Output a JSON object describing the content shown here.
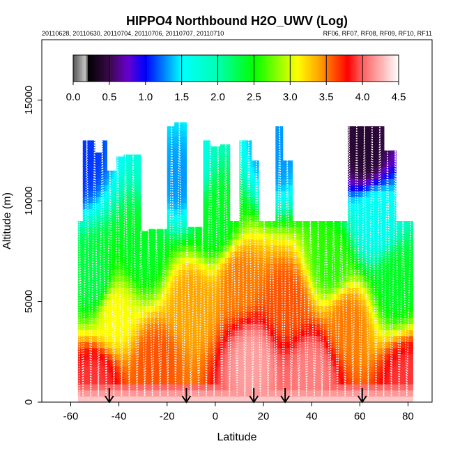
{
  "chart_data": {
    "type": "heatmap",
    "title": "HIPPO4 Northbound H2O_UWV (Log)",
    "subtitle_left": "20110628, 20110630, 20110704, 20110706, 20110707, 20110710",
    "subtitle_right": "RF06, RF07, RF08, RF09, RF10, RF11",
    "xlabel": "Latitude",
    "ylabel": "Altitude (m)",
    "xlim": [
      -72,
      90
    ],
    "ylim": [
      0,
      18000
    ],
    "x_ticks": [
      -60,
      -40,
      -20,
      0,
      20,
      40,
      60,
      80
    ],
    "y_ticks": [
      0,
      5000,
      10000,
      15000
    ],
    "colorbar": {
      "label_values": [
        0.0,
        0.5,
        1.0,
        1.5,
        2.0,
        2.5,
        3.0,
        3.5,
        4.0,
        4.5
      ],
      "range": [
        0,
        4.5
      ],
      "stops": [
        {
          "v": 0.0,
          "color": "#555555"
        },
        {
          "v": 0.18,
          "color": "#cccccc"
        },
        {
          "v": 0.2,
          "color": "#000000"
        },
        {
          "v": 0.5,
          "color": "#3a0a4a"
        },
        {
          "v": 0.75,
          "color": "#6600cc"
        },
        {
          "v": 1.0,
          "color": "#0000ff"
        },
        {
          "v": 1.5,
          "color": "#00ffff"
        },
        {
          "v": 2.0,
          "color": "#00ffb0"
        },
        {
          "v": 2.5,
          "color": "#00ff00"
        },
        {
          "v": 2.9,
          "color": "#aaff00"
        },
        {
          "v": 3.1,
          "color": "#ffff00"
        },
        {
          "v": 3.4,
          "color": "#ffa500"
        },
        {
          "v": 3.8,
          "color": "#ff0000"
        },
        {
          "v": 3.95,
          "color": "#ff5050"
        },
        {
          "v": 4.5,
          "color": "#ffffff"
        }
      ]
    },
    "profile_boundary": {
      "lat_edges": [
        -57,
        -55,
        -50,
        -47,
        -45,
        -41,
        -38,
        -31,
        -28,
        -20,
        -17,
        -12,
        -5,
        -2,
        2,
        6,
        10,
        15,
        18,
        25,
        28,
        32,
        37,
        45,
        52,
        55,
        70,
        75,
        82
      ],
      "top_alt": [
        9000,
        13000,
        12400,
        13000,
        11500,
        12200,
        12300,
        8500,
        8600,
        13700,
        13900,
        8700,
        13000,
        12700,
        12800,
        9000,
        13000,
        12000,
        9000,
        13700,
        12000,
        9000,
        9000,
        9000,
        9000,
        13700,
        12500,
        9000,
        9000
      ]
    },
    "sample_field": [
      {
        "lat": -56,
        "alt": 12000,
        "value": 1.1
      },
      {
        "lat": -50,
        "alt": 6000,
        "value": 2.3
      },
      {
        "lat": -50,
        "alt": 1000,
        "value": 3.9
      },
      {
        "lat": -42,
        "alt": 4500,
        "value": 3.1
      },
      {
        "lat": -30,
        "alt": 7500,
        "value": 2.4
      },
      {
        "lat": -25,
        "alt": 2000,
        "value": 3.6
      },
      {
        "lat": -15,
        "alt": 11000,
        "value": 1.3
      },
      {
        "lat": -10,
        "alt": 5000,
        "value": 3.4
      },
      {
        "lat": 0,
        "alt": 9000,
        "value": 2.4
      },
      {
        "lat": 10,
        "alt": 6000,
        "value": 3.5
      },
      {
        "lat": 15,
        "alt": 2000,
        "value": 4.2
      },
      {
        "lat": 25,
        "alt": 12500,
        "value": 1.3
      },
      {
        "lat": 30,
        "alt": 5000,
        "value": 3.6
      },
      {
        "lat": 40,
        "alt": 1500,
        "value": 4.1
      },
      {
        "lat": 48,
        "alt": 7000,
        "value": 2.6
      },
      {
        "lat": 55,
        "alt": 4000,
        "value": 3.5
      },
      {
        "lat": 62,
        "alt": 12500,
        "value": 0.4
      },
      {
        "lat": 66,
        "alt": 9000,
        "value": 1.6
      },
      {
        "lat": 75,
        "alt": 6000,
        "value": 2.4
      },
      {
        "lat": 80,
        "alt": 1000,
        "value": 3.9
      }
    ],
    "arrow_latitudes": [
      -44,
      -12,
      16,
      29,
      61
    ],
    "grid": false,
    "legend": "colorbar top-center inside plot"
  }
}
